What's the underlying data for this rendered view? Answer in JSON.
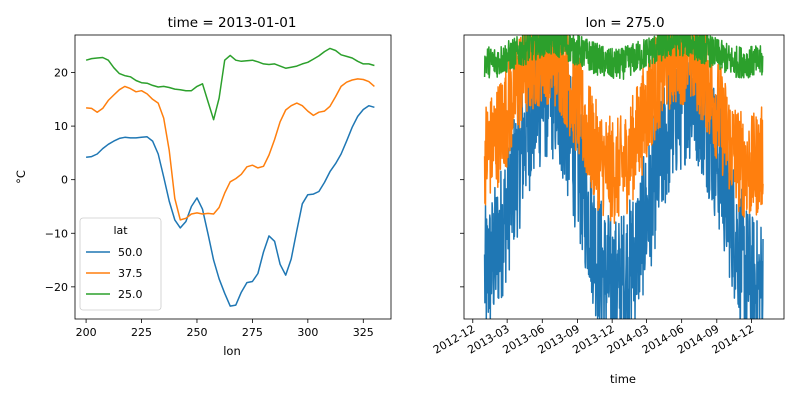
{
  "chart_data": [
    {
      "type": "line",
      "title": "time = 2013-01-01",
      "xlabel": "lon",
      "ylabel": "°C",
      "xlim": [
        195,
        337.5
      ],
      "ylim": [
        -26,
        27
      ],
      "xticks": [
        200,
        225,
        250,
        275,
        300,
        325
      ],
      "yticks": [
        -20,
        -10,
        0,
        10,
        20
      ],
      "legend": {
        "title": "lat",
        "placement": "lower-left"
      },
      "series": [
        {
          "name": "50.0",
          "color": "#1f77b4",
          "x": [
            200,
            202.5,
            205,
            207.5,
            210,
            212.5,
            215,
            217.5,
            220,
            222.5,
            225,
            227.5,
            230,
            232.5,
            235,
            237.5,
            240,
            242.5,
            245,
            247.5,
            250,
            252.5,
            255,
            257.5,
            260,
            262.5,
            265,
            267.5,
            270,
            272.5,
            275,
            277.5,
            280,
            282.5,
            285,
            287.5,
            290,
            292.5,
            295,
            297.5,
            300,
            302.5,
            305,
            307.5,
            310,
            312.5,
            315,
            317.5,
            320,
            322.5,
            325,
            327.5,
            330
          ],
          "y": [
            4.2,
            4.3,
            4.8,
            5.8,
            6.6,
            7.2,
            7.7,
            7.9,
            7.8,
            7.8,
            7.9,
            8.0,
            7.2,
            4.8,
            0.5,
            -4.0,
            -7.5,
            -9.0,
            -7.8,
            -5.0,
            -3.4,
            -5.5,
            -10.2,
            -15.0,
            -18.5,
            -21.2,
            -23.6,
            -23.4,
            -21.0,
            -19.2,
            -19.0,
            -17.5,
            -13.5,
            -10.5,
            -11.5,
            -15.8,
            -17.8,
            -14.8,
            -9.5,
            -4.5,
            -2.8,
            -2.7,
            -2.2,
            -0.5,
            1.5,
            3.0,
            4.8,
            7.2,
            9.8,
            11.8,
            13.1,
            13.8,
            13.5
          ]
        },
        {
          "name": "37.5",
          "color": "#ff7f0e",
          "x": [
            200,
            202.5,
            205,
            207.5,
            210,
            212.5,
            215,
            217.5,
            220,
            222.5,
            225,
            227.5,
            230,
            232.5,
            235,
            237.5,
            240,
            242.5,
            245,
            247.5,
            250,
            252.5,
            255,
            257.5,
            260,
            262.5,
            265,
            267.5,
            270,
            272.5,
            275,
            277.5,
            280,
            282.5,
            285,
            287.5,
            290,
            292.5,
            295,
            297.5,
            300,
            302.5,
            305,
            307.5,
            310,
            312.5,
            315,
            317.5,
            320,
            322.5,
            325,
            327.5,
            330
          ],
          "y": [
            13.4,
            13.3,
            12.6,
            13.3,
            14.8,
            15.8,
            16.8,
            17.4,
            17.0,
            16.4,
            16.6,
            16.0,
            15.0,
            14.3,
            11.5,
            5.5,
            -3.5,
            -7.5,
            -7.2,
            -6.4,
            -6.2,
            -6.4,
            -6.3,
            -6.4,
            -5.2,
            -2.5,
            -0.4,
            0.2,
            1.0,
            2.4,
            2.7,
            2.2,
            2.5,
            4.6,
            7.5,
            10.8,
            13.0,
            13.8,
            14.3,
            13.8,
            12.8,
            12.0,
            12.6,
            12.8,
            13.7,
            15.5,
            17.4,
            18.2,
            18.6,
            18.8,
            18.7,
            18.3,
            17.4
          ]
        },
        {
          "name": "25.0",
          "color": "#2ca02c",
          "x": [
            200,
            202.5,
            205,
            207.5,
            210,
            212.5,
            215,
            217.5,
            220,
            222.5,
            225,
            227.5,
            230,
            232.5,
            235,
            237.5,
            240,
            242.5,
            245,
            247.5,
            250,
            252.5,
            255,
            257.5,
            260,
            262.5,
            265,
            267.5,
            270,
            272.5,
            275,
            277.5,
            280,
            282.5,
            285,
            287.5,
            290,
            292.5,
            295,
            297.5,
            300,
            302.5,
            305,
            307.5,
            310,
            312.5,
            315,
            317.5,
            320,
            322.5,
            325,
            327.5,
            330
          ],
          "y": [
            22.3,
            22.6,
            22.7,
            22.8,
            22.3,
            20.9,
            19.8,
            19.4,
            19.2,
            18.5,
            18.1,
            18.0,
            17.6,
            17.3,
            17.4,
            17.2,
            16.9,
            16.8,
            16.6,
            16.6,
            17.4,
            17.9,
            14.5,
            11.2,
            15.2,
            22.3,
            23.2,
            22.3,
            22.1,
            22.2,
            22.3,
            22.0,
            21.6,
            21.5,
            21.6,
            21.2,
            20.8,
            21.0,
            21.2,
            21.6,
            21.9,
            22.5,
            23.1,
            23.9,
            24.5,
            24.1,
            23.3,
            23.0,
            22.7,
            22.1,
            21.6,
            21.6,
            21.3
          ]
        }
      ]
    },
    {
      "type": "line",
      "title": "lon = 275.0",
      "xlabel": "time",
      "ylabel": "",
      "xlim": [
        "2012-11-08",
        "2015-02-24"
      ],
      "ylim": [
        -26,
        27
      ],
      "xticks": [
        "2012-12",
        "2013-03",
        "2013-06",
        "2013-09",
        "2013-12",
        "2014-03",
        "2014-06",
        "2014-09",
        "2014-12"
      ],
      "yticks": [
        -20,
        -10,
        0,
        10,
        20
      ],
      "sharey": true,
      "grid": false,
      "series": [
        {
          "name": "50.0",
          "color": "#1f77b4",
          "start": "2013-01-01",
          "end": "2014-12-31",
          "base": [
            -18,
            -16,
            -13,
            -9,
            -5,
            0,
            4,
            9,
            12,
            14,
            16,
            17,
            15.5,
            13,
            9,
            5,
            1,
            -4,
            -9,
            -14,
            -17,
            -19,
            -20,
            -19,
            -17.5,
            -15,
            -12,
            -8,
            -4,
            1,
            5,
            9,
            12,
            14,
            16,
            16.5,
            15.5,
            12.5,
            9,
            5,
            1,
            -4,
            -9,
            -13,
            -17,
            -19,
            -20,
            -19.5
          ],
          "noise": 13
        },
        {
          "name": "37.5",
          "color": "#ff7f0e",
          "start": "2013-01-01",
          "end": "2014-12-31",
          "base": [
            5,
            6,
            8,
            10.5,
            13,
            16,
            19,
            21,
            22.5,
            23.5,
            24,
            24,
            23,
            21.5,
            19,
            16,
            13,
            10,
            7,
            4.5,
            3,
            2,
            1.5,
            2,
            3.5,
            6,
            9,
            12,
            15,
            18,
            20.5,
            22.5,
            23.5,
            24,
            24,
            23.5,
            22,
            20,
            17,
            14,
            11,
            8,
            5.5,
            3.5,
            2.5,
            2,
            3,
            4
          ],
          "noise": 10
        },
        {
          "name": "25.0",
          "color": "#2ca02c",
          "start": "2013-01-01",
          "end": "2014-12-31",
          "base": [
            22,
            22,
            22,
            22.5,
            23,
            23.5,
            24,
            24.5,
            25,
            25.5,
            26,
            26,
            26,
            25.5,
            25,
            24.5,
            24,
            23.5,
            23,
            22.5,
            22,
            21.5,
            21.5,
            21.5,
            22,
            22.5,
            23,
            23.5,
            24,
            24.5,
            25,
            25.5,
            26,
            26,
            26,
            25.5,
            25,
            24.5,
            24,
            23.5,
            23,
            22.5,
            22,
            22,
            22,
            22,
            22,
            22
          ],
          "noise": 3
        }
      ]
    }
  ]
}
